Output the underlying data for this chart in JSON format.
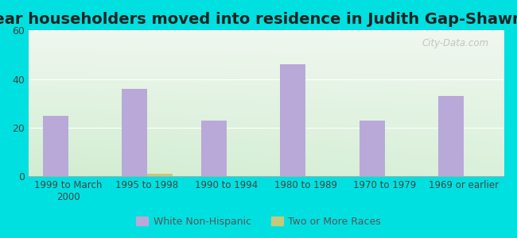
{
  "title": "Year householders moved into residence in Judith Gap-Shawmut",
  "categories": [
    "1999 to March\n2000",
    "1995 to 1998",
    "1990 to 1994",
    "1980 to 1989",
    "1970 to 1979",
    "1969 or earlier"
  ],
  "white_non_hispanic": [
    25,
    36,
    23,
    46,
    23,
    33
  ],
  "two_or_more_races": [
    0,
    1,
    0,
    0,
    0,
    0
  ],
  "bar_color_white": "#b8a9d9",
  "bar_color_two": "#c8c87a",
  "background_outer": "#00e0e0",
  "ylim": [
    0,
    60
  ],
  "yticks": [
    0,
    20,
    40,
    60
  ],
  "title_fontsize": 14,
  "legend_labels": [
    "White Non-Hispanic",
    "Two or More Races"
  ],
  "bar_width": 0.32,
  "watermark": "City-Data.com"
}
